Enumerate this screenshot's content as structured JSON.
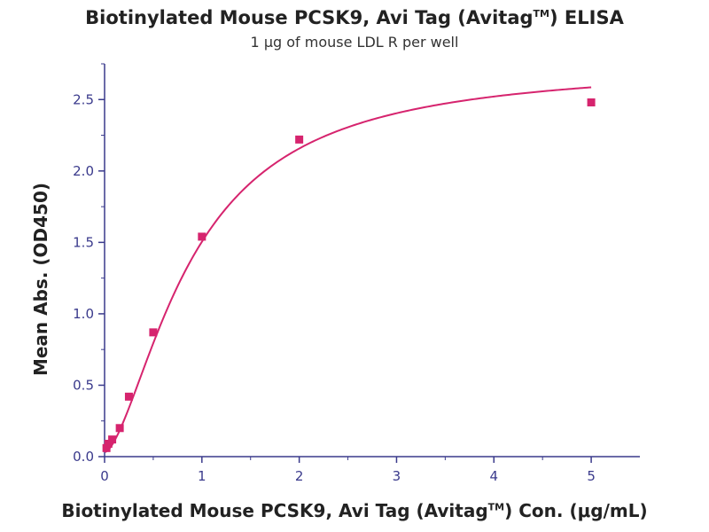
{
  "chart_data": {
    "type": "scatter",
    "title": "Biotinylated Mouse PCSK9, Avi Tag (Avitag",
    "title_sup": "TM",
    "title_end": ") ELISA",
    "subtitle": "1 μg of mouse LDL R per well",
    "xlabel": "Biotinylated Mouse PCSK9, Avi Tag (Avitag",
    "xlabel_sup": "TM",
    "xlabel_end": ") Con. (μg/mL)",
    "ylabel": "Mean Abs. (OD450)",
    "xlim": [
      0,
      5.5
    ],
    "ylim": [
      0,
      2.75
    ],
    "xticks": [
      0,
      1,
      2,
      3,
      4,
      5
    ],
    "xtick_labels": [
      "0",
      "1",
      "2",
      "3",
      "4",
      "5"
    ],
    "yticks": [
      0,
      0.5,
      1.0,
      1.5,
      2.0,
      2.5
    ],
    "ytick_labels": [
      "0.0",
      "0.5",
      "1.0",
      "1.5",
      "2.0",
      "2.5"
    ],
    "grid": false,
    "colors": {
      "series": "#d6246e",
      "axis": "#3a3a8c",
      "text": "#222222"
    },
    "points": [
      {
        "x": 0.0195,
        "y": 0.06
      },
      {
        "x": 0.039,
        "y": 0.09
      },
      {
        "x": 0.078,
        "y": 0.12
      },
      {
        "x": 0.156,
        "y": 0.2
      },
      {
        "x": 0.25,
        "y": 0.42
      },
      {
        "x": 0.5,
        "y": 0.87
      },
      {
        "x": 1.0,
        "y": 1.54
      },
      {
        "x": 2.0,
        "y": 2.22
      },
      {
        "x": 5.0,
        "y": 2.48
      }
    ],
    "fit": {
      "model": "4PL",
      "bottom": 0.03,
      "top": 2.75,
      "ec50": 0.9,
      "hill": 1.6
    }
  }
}
